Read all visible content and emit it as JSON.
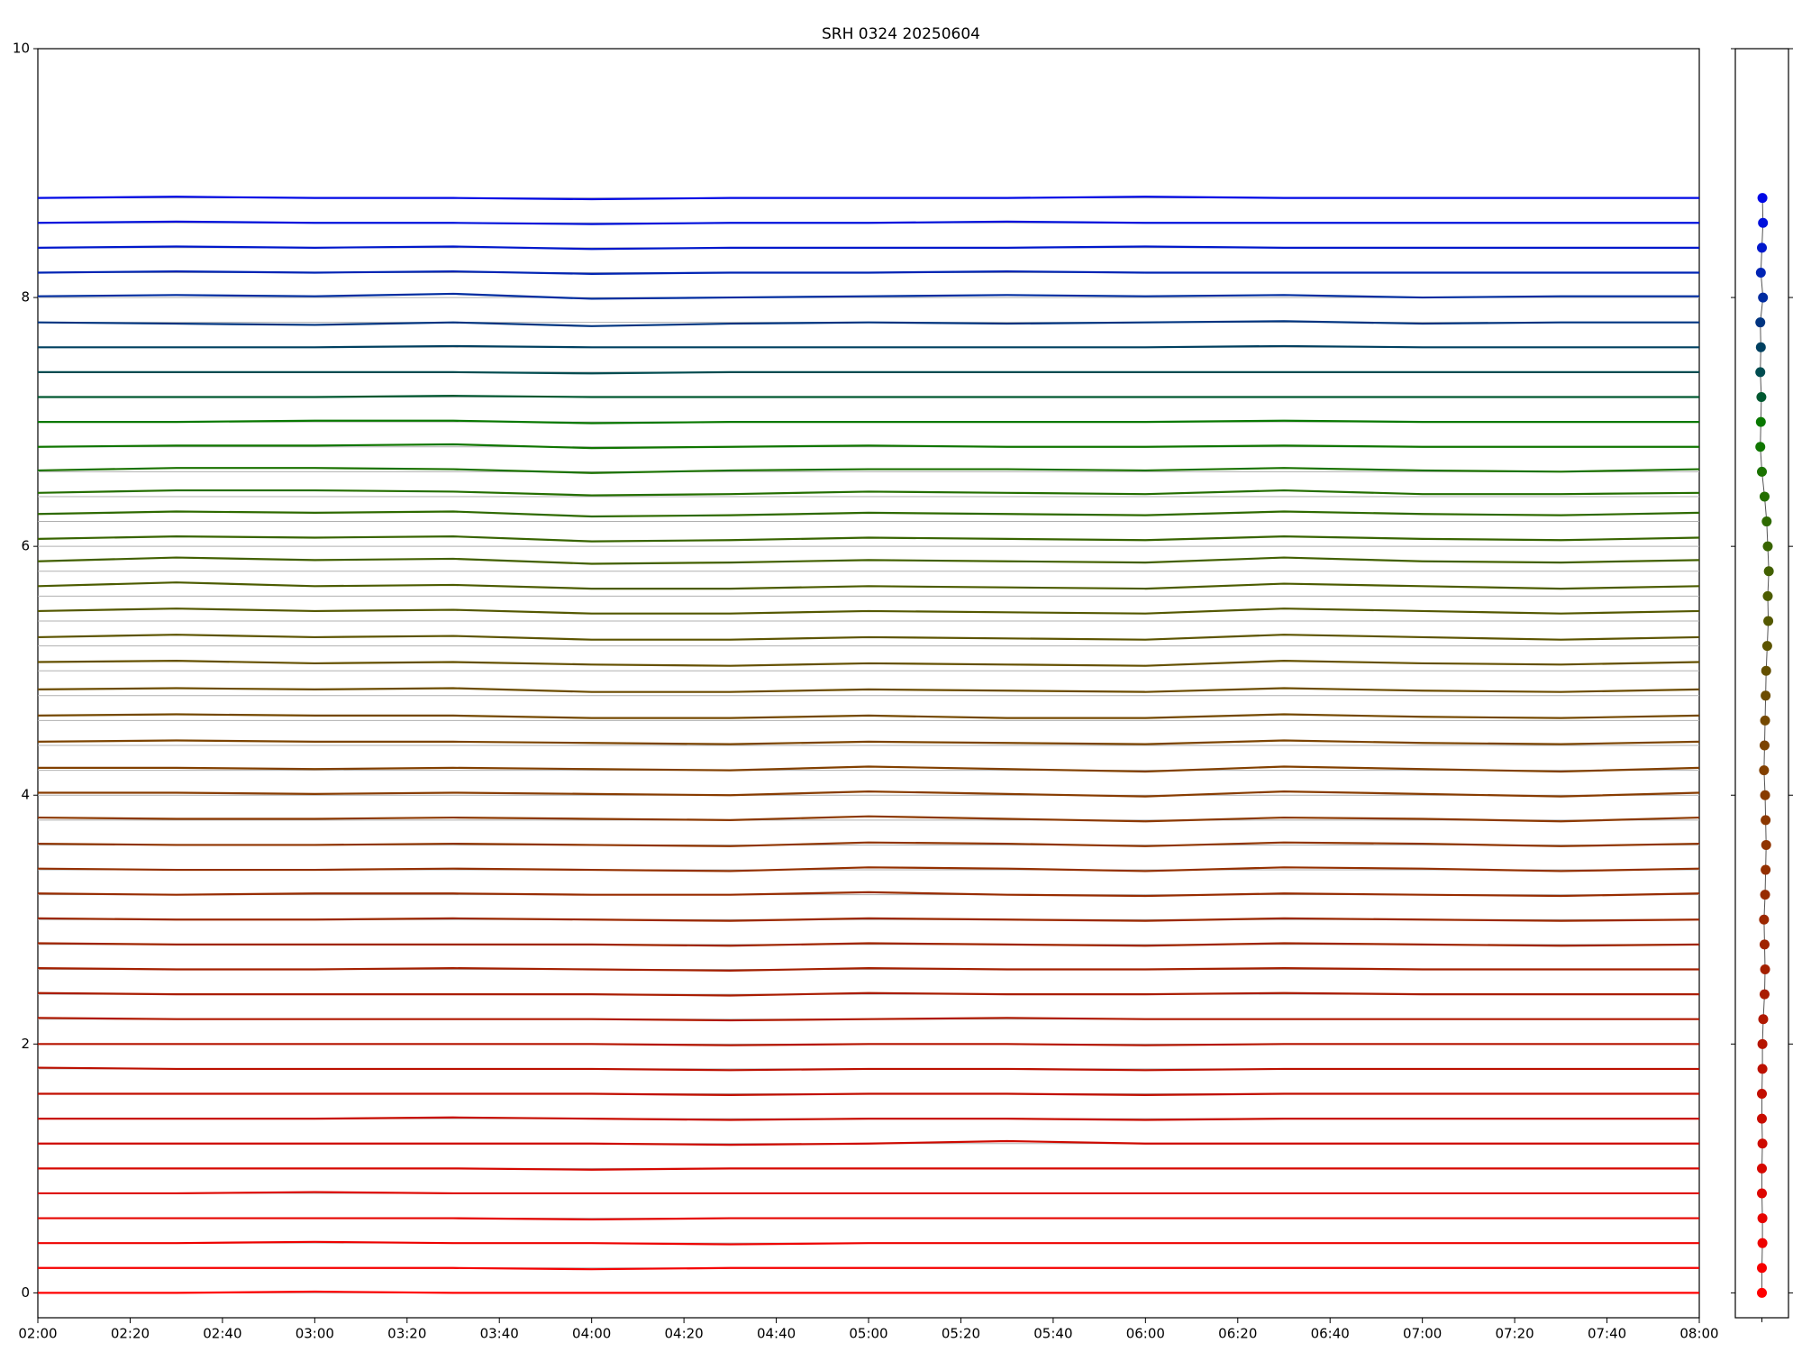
{
  "chart_data": [
    {
      "type": "line",
      "title": "SRH 0324 20250604",
      "x": [
        "02:00",
        "02:30",
        "03:00",
        "03:30",
        "04:00",
        "04:30",
        "05:00",
        "05:30",
        "06:00",
        "06:30",
        "07:00",
        "07:30",
        "08:00"
      ],
      "xlim": [
        "02:00",
        "08:00"
      ],
      "xticks": [
        "02:00",
        "02:20",
        "02:40",
        "03:00",
        "03:20",
        "03:40",
        "04:00",
        "04:20",
        "04:40",
        "05:00",
        "05:20",
        "05:40",
        "06:00",
        "06:20",
        "06:40",
        "07:00",
        "07:20",
        "07:40",
        "08:00"
      ],
      "ylim": [
        -0.2,
        10
      ],
      "yticks": [
        0,
        2,
        4,
        6,
        8,
        10
      ],
      "series": [
        {
          "color": "#ff0000",
          "values": [
            0.0,
            0.0,
            0.01,
            0.0,
            0.0,
            0.0,
            0.0,
            0.0,
            0.0,
            0.0,
            0.0,
            0.0,
            0.0
          ]
        },
        {
          "color": "#f60000",
          "values": [
            0.2,
            0.2,
            0.2,
            0.2,
            0.19,
            0.2,
            0.2,
            0.2,
            0.2,
            0.2,
            0.2,
            0.2,
            0.2
          ]
        },
        {
          "color": "#ee0200",
          "values": [
            0.4,
            0.4,
            0.41,
            0.4,
            0.4,
            0.39,
            0.4,
            0.4,
            0.4,
            0.4,
            0.4,
            0.4,
            0.4
          ]
        },
        {
          "color": "#e60400",
          "values": [
            0.6,
            0.6,
            0.6,
            0.6,
            0.59,
            0.6,
            0.6,
            0.6,
            0.6,
            0.6,
            0.6,
            0.6,
            0.6
          ]
        },
        {
          "color": "#de0600",
          "values": [
            0.8,
            0.8,
            0.81,
            0.8,
            0.8,
            0.8,
            0.8,
            0.8,
            0.8,
            0.8,
            0.8,
            0.8,
            0.8
          ]
        },
        {
          "color": "#d60800",
          "values": [
            1.0,
            1.0,
            1.0,
            1.0,
            0.99,
            1.0,
            1.0,
            1.0,
            1.0,
            1.0,
            1.0,
            1.0,
            1.0
          ]
        },
        {
          "color": "#ce0a00",
          "values": [
            1.2,
            1.2,
            1.2,
            1.2,
            1.2,
            1.19,
            1.2,
            1.22,
            1.2,
            1.2,
            1.2,
            1.2,
            1.2
          ]
        },
        {
          "color": "#c80c00",
          "values": [
            1.4,
            1.4,
            1.4,
            1.41,
            1.4,
            1.39,
            1.4,
            1.4,
            1.39,
            1.4,
            1.4,
            1.4,
            1.4
          ]
        },
        {
          "color": "#c20e00",
          "values": [
            1.6,
            1.6,
            1.6,
            1.6,
            1.6,
            1.59,
            1.6,
            1.6,
            1.59,
            1.6,
            1.6,
            1.6,
            1.6
          ]
        },
        {
          "color": "#bc1000",
          "values": [
            1.81,
            1.8,
            1.8,
            1.8,
            1.8,
            1.79,
            1.8,
            1.8,
            1.79,
            1.8,
            1.8,
            1.8,
            1.8
          ]
        },
        {
          "color": "#b61400",
          "values": [
            2.0,
            2.0,
            2.0,
            2.0,
            2.0,
            1.99,
            2.0,
            2.0,
            1.99,
            2.0,
            2.0,
            2.0,
            2.0
          ]
        },
        {
          "color": "#b01800",
          "values": [
            2.21,
            2.2,
            2.2,
            2.2,
            2.2,
            2.19,
            2.2,
            2.21,
            2.2,
            2.2,
            2.2,
            2.2,
            2.2
          ]
        },
        {
          "color": "#aa1c00",
          "values": [
            2.41,
            2.4,
            2.4,
            2.4,
            2.4,
            2.39,
            2.41,
            2.4,
            2.4,
            2.41,
            2.4,
            2.4,
            2.4
          ]
        },
        {
          "color": "#a42000",
          "values": [
            2.61,
            2.6,
            2.6,
            2.61,
            2.6,
            2.59,
            2.61,
            2.6,
            2.6,
            2.61,
            2.6,
            2.6,
            2.6
          ]
        },
        {
          "color": "#a02400",
          "values": [
            2.81,
            2.8,
            2.8,
            2.8,
            2.8,
            2.79,
            2.81,
            2.8,
            2.79,
            2.81,
            2.8,
            2.79,
            2.8
          ]
        },
        {
          "color": "#9c2800",
          "values": [
            3.01,
            3.0,
            3.0,
            3.01,
            3.0,
            2.99,
            3.01,
            3.0,
            2.99,
            3.01,
            3.0,
            2.99,
            3.0
          ]
        },
        {
          "color": "#982c00",
          "values": [
            3.21,
            3.2,
            3.21,
            3.21,
            3.2,
            3.2,
            3.22,
            3.2,
            3.19,
            3.21,
            3.2,
            3.19,
            3.21
          ]
        },
        {
          "color": "#943000",
          "values": [
            3.41,
            3.4,
            3.4,
            3.41,
            3.4,
            3.39,
            3.42,
            3.41,
            3.39,
            3.42,
            3.41,
            3.39,
            3.41
          ]
        },
        {
          "color": "#903400",
          "values": [
            3.61,
            3.6,
            3.6,
            3.61,
            3.6,
            3.59,
            3.62,
            3.61,
            3.59,
            3.62,
            3.61,
            3.59,
            3.61
          ]
        },
        {
          "color": "#8c3800",
          "values": [
            3.82,
            3.81,
            3.81,
            3.82,
            3.81,
            3.8,
            3.83,
            3.81,
            3.79,
            3.82,
            3.81,
            3.79,
            3.82
          ]
        },
        {
          "color": "#883c00",
          "values": [
            4.02,
            4.02,
            4.01,
            4.02,
            4.01,
            4.0,
            4.03,
            4.01,
            3.99,
            4.03,
            4.01,
            3.99,
            4.02
          ]
        },
        {
          "color": "#824000",
          "values": [
            4.22,
            4.22,
            4.21,
            4.22,
            4.21,
            4.2,
            4.23,
            4.21,
            4.19,
            4.23,
            4.21,
            4.19,
            4.22
          ]
        },
        {
          "color": "#7c4400",
          "values": [
            4.43,
            4.44,
            4.43,
            4.43,
            4.42,
            4.41,
            4.43,
            4.42,
            4.41,
            4.44,
            4.42,
            4.41,
            4.43
          ]
        },
        {
          "color": "#744800",
          "values": [
            4.64,
            4.65,
            4.64,
            4.64,
            4.62,
            4.62,
            4.64,
            4.62,
            4.62,
            4.65,
            4.63,
            4.62,
            4.64
          ]
        },
        {
          "color": "#6c4c00",
          "values": [
            4.85,
            4.86,
            4.85,
            4.86,
            4.83,
            4.83,
            4.85,
            4.84,
            4.83,
            4.86,
            4.84,
            4.83,
            4.85
          ]
        },
        {
          "color": "#645000",
          "values": [
            5.07,
            5.08,
            5.06,
            5.07,
            5.05,
            5.04,
            5.06,
            5.05,
            5.04,
            5.08,
            5.06,
            5.05,
            5.07
          ]
        },
        {
          "color": "#5c5400",
          "values": [
            5.27,
            5.29,
            5.27,
            5.28,
            5.25,
            5.25,
            5.27,
            5.26,
            5.25,
            5.29,
            5.27,
            5.25,
            5.27
          ]
        },
        {
          "color": "#545800",
          "values": [
            5.48,
            5.5,
            5.48,
            5.49,
            5.46,
            5.46,
            5.48,
            5.47,
            5.46,
            5.5,
            5.48,
            5.46,
            5.48
          ]
        },
        {
          "color": "#4c5c00",
          "values": [
            5.68,
            5.71,
            5.68,
            5.69,
            5.66,
            5.66,
            5.68,
            5.67,
            5.66,
            5.7,
            5.68,
            5.66,
            5.68
          ]
        },
        {
          "color": "#426000",
          "values": [
            5.88,
            5.91,
            5.89,
            5.9,
            5.86,
            5.87,
            5.89,
            5.88,
            5.87,
            5.91,
            5.88,
            5.87,
            5.89
          ]
        },
        {
          "color": "#386400",
          "values": [
            6.06,
            6.08,
            6.07,
            6.08,
            6.04,
            6.05,
            6.07,
            6.06,
            6.05,
            6.08,
            6.06,
            6.05,
            6.07
          ]
        },
        {
          "color": "#2e6a00",
          "values": [
            6.26,
            6.28,
            6.27,
            6.28,
            6.24,
            6.25,
            6.27,
            6.26,
            6.25,
            6.28,
            6.26,
            6.25,
            6.27
          ]
        },
        {
          "color": "#246e00",
          "values": [
            6.43,
            6.45,
            6.45,
            6.44,
            6.41,
            6.42,
            6.44,
            6.43,
            6.42,
            6.45,
            6.42,
            6.42,
            6.43
          ]
        },
        {
          "color": "#1a7200",
          "values": [
            6.61,
            6.63,
            6.63,
            6.62,
            6.59,
            6.61,
            6.62,
            6.62,
            6.61,
            6.63,
            6.61,
            6.6,
            6.62
          ]
        },
        {
          "color": "#107600",
          "values": [
            6.8,
            6.81,
            6.81,
            6.82,
            6.79,
            6.8,
            6.81,
            6.8,
            6.8,
            6.81,
            6.8,
            6.8,
            6.8
          ]
        },
        {
          "color": "#087800",
          "values": [
            7.0,
            7.0,
            7.01,
            7.01,
            6.99,
            7.0,
            7.0,
            7.0,
            7.0,
            7.01,
            7.0,
            7.0,
            7.0
          ]
        },
        {
          "color": "#005830",
          "values": [
            7.2,
            7.2,
            7.2,
            7.21,
            7.2,
            7.2,
            7.2,
            7.2,
            7.2,
            7.2,
            7.2,
            7.2,
            7.2
          ]
        },
        {
          "color": "#004c50",
          "values": [
            7.4,
            7.4,
            7.4,
            7.4,
            7.39,
            7.4,
            7.4,
            7.4,
            7.4,
            7.4,
            7.4,
            7.4,
            7.4
          ]
        },
        {
          "color": "#004060",
          "values": [
            7.6,
            7.6,
            7.6,
            7.61,
            7.6,
            7.6,
            7.6,
            7.6,
            7.6,
            7.61,
            7.6,
            7.6,
            7.6
          ]
        },
        {
          "color": "#003480",
          "values": [
            7.8,
            7.79,
            7.78,
            7.8,
            7.77,
            7.79,
            7.8,
            7.79,
            7.8,
            7.81,
            7.79,
            7.8,
            7.8
          ]
        },
        {
          "color": "#002ca0",
          "values": [
            8.01,
            8.02,
            8.01,
            8.03,
            7.99,
            8.0,
            8.01,
            8.02,
            8.01,
            8.02,
            8.0,
            8.01,
            8.01
          ]
        },
        {
          "color": "#0024b4",
          "values": [
            8.2,
            8.21,
            8.2,
            8.21,
            8.19,
            8.2,
            8.2,
            8.21,
            8.2,
            8.2,
            8.2,
            8.2,
            8.2
          ]
        },
        {
          "color": "#0018cc",
          "values": [
            8.4,
            8.41,
            8.4,
            8.41,
            8.39,
            8.4,
            8.4,
            8.4,
            8.41,
            8.4,
            8.4,
            8.4,
            8.4
          ]
        },
        {
          "color": "#0010dc",
          "values": [
            8.6,
            8.61,
            8.6,
            8.6,
            8.59,
            8.6,
            8.6,
            8.61,
            8.6,
            8.6,
            8.6,
            8.6,
            8.6
          ]
        },
        {
          "color": "#0008e6",
          "values": [
            8.8,
            8.81,
            8.8,
            8.8,
            8.79,
            8.8,
            8.8,
            8.8,
            8.81,
            8.8,
            8.8,
            8.8,
            8.8
          ]
        }
      ]
    },
    {
      "type": "scatter",
      "xlim": [
        -1,
        1
      ],
      "ylim": [
        -0.2,
        10
      ],
      "x": [
        0.0,
        0.0,
        0.02,
        0.02,
        0.0,
        0.0,
        0.02,
        0.0,
        0.0,
        0.02,
        0.02,
        0.05,
        0.1,
        0.12,
        0.1,
        0.08,
        0.12,
        0.14,
        0.16,
        0.14,
        0.12,
        0.08,
        0.1,
        0.12,
        0.14,
        0.16,
        0.2,
        0.24,
        0.22,
        0.26,
        0.22,
        0.18,
        0.1,
        0.0,
        -0.06,
        -0.04,
        -0.02,
        -0.06,
        -0.04,
        -0.06,
        0.04,
        -0.04,
        0.0,
        0.04,
        0.02
      ],
      "y": [
        0,
        0.2,
        0.4,
        0.6,
        0.8,
        1.0,
        1.2,
        1.4,
        1.6,
        1.8,
        2.0,
        2.2,
        2.4,
        2.6,
        2.8,
        3.0,
        3.2,
        3.4,
        3.6,
        3.8,
        4.0,
        4.2,
        4.4,
        4.6,
        4.8,
        5.0,
        5.2,
        5.4,
        5.6,
        5.8,
        6.0,
        6.2,
        6.4,
        6.6,
        6.8,
        7.0,
        7.2,
        7.4,
        7.6,
        7.8,
        8.0,
        8.2,
        8.4,
        8.6,
        8.8
      ]
    }
  ]
}
